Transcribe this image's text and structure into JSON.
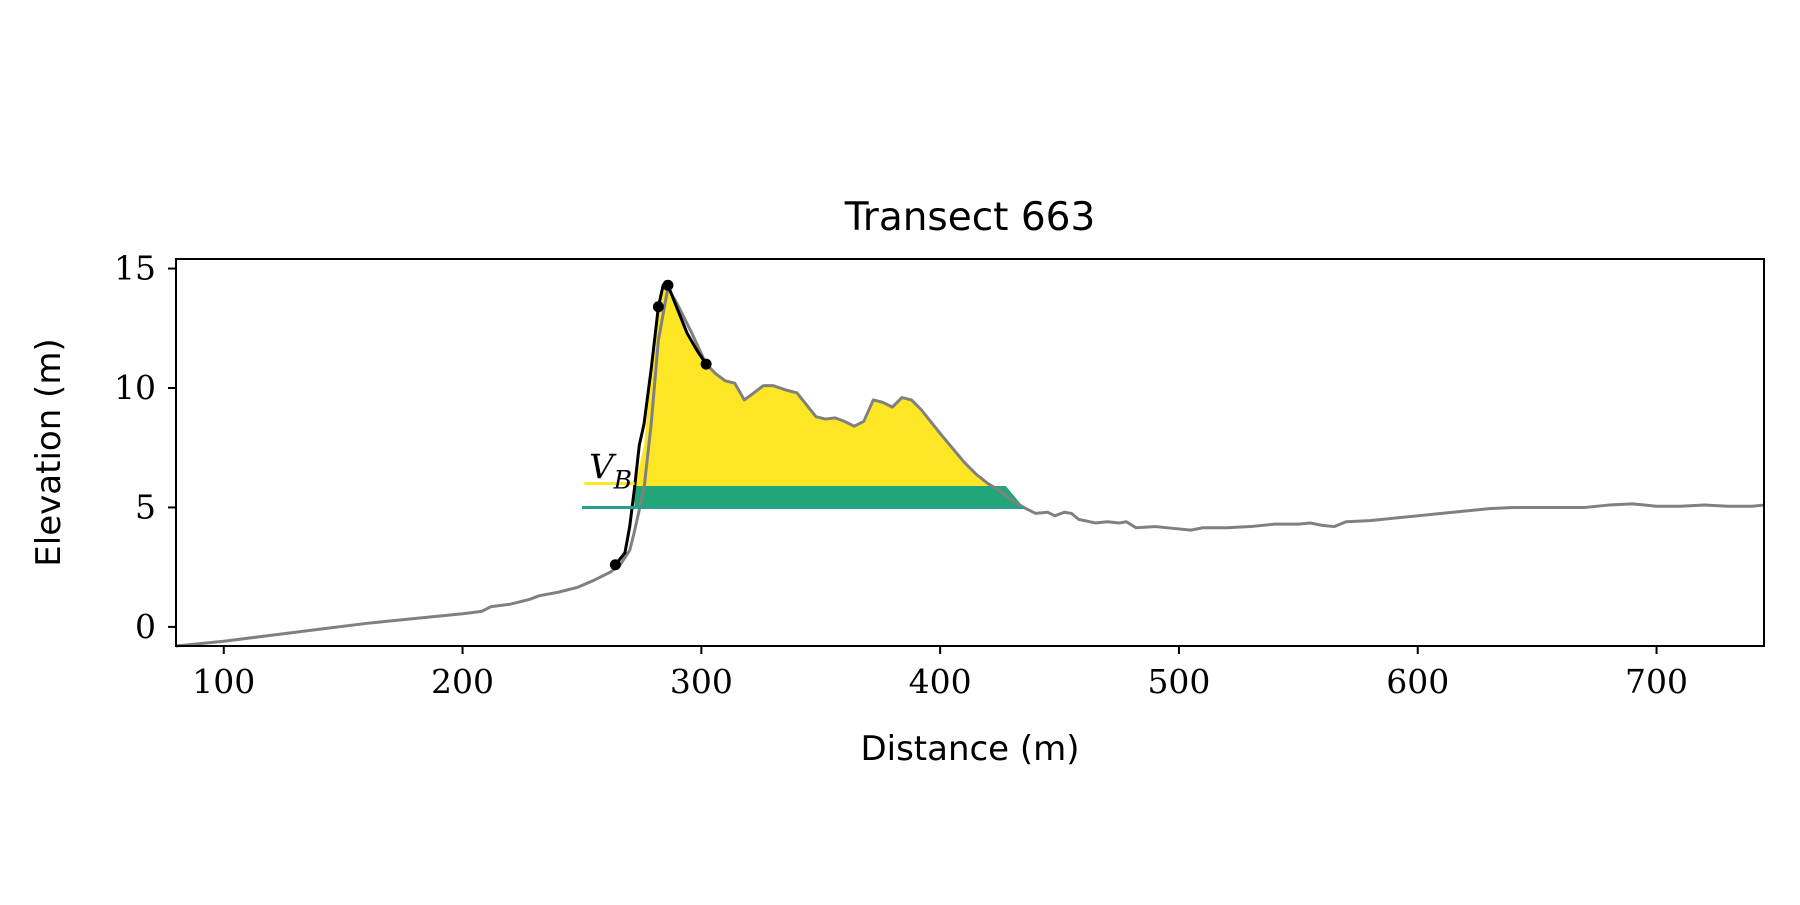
{
  "chart_data": {
    "type": "line",
    "title": "Transect 663",
    "xlabel": "Distance (m)",
    "ylabel": "Elevation (m)",
    "xlim": [
      80,
      745
    ],
    "ylim": [
      -0.8,
      15.4
    ],
    "xticks": [
      100,
      200,
      300,
      400,
      500,
      600,
      700
    ],
    "xtick_labels": [
      "100",
      "200",
      "300",
      "400",
      "500",
      "600",
      "700"
    ],
    "yticks": [
      0,
      5,
      10,
      15
    ],
    "ytick_labels": [
      "0",
      "5",
      "10",
      "15"
    ],
    "grid": false,
    "legend": "none",
    "colors": {
      "profile": "#808080",
      "dune_line": "#000000",
      "volume_fill": "#fde725",
      "base_fill": "#21a67a",
      "base_line": "#2a9d8f",
      "vb_line": "#fde725"
    },
    "annotation": {
      "label": "V",
      "subscript": "B",
      "x": 253,
      "y": 6.3,
      "yellow_line": {
        "x": [
          251,
          272
        ],
        "y": 6.0
      },
      "teal_line": {
        "x": [
          250,
          435
        ],
        "y": 5.0
      }
    },
    "series": [
      {
        "role": "profile",
        "x": [
          80,
          90,
          100,
          120,
          140,
          160,
          180,
          200,
          208,
          212,
          220,
          228,
          232,
          240,
          248,
          255,
          262,
          266,
          270,
          272,
          276,
          279,
          282,
          286,
          290,
          296,
          302,
          306,
          310,
          314,
          318,
          322,
          326,
          330,
          336,
          340,
          344,
          348,
          352,
          356,
          360,
          364,
          368,
          372,
          376,
          380,
          384,
          388,
          392,
          396,
          400,
          405,
          410,
          415,
          420,
          425,
          430,
          435,
          440,
          445,
          448,
          452,
          455,
          458,
          465,
          470,
          475,
          478,
          482,
          490,
          500,
          505,
          510,
          520,
          530,
          540,
          550,
          555,
          560,
          565,
          570,
          580,
          590,
          600,
          610,
          620,
          630,
          640,
          650,
          660,
          670,
          680,
          690,
          700,
          710,
          720,
          730,
          740,
          745
        ],
        "y": [
          -0.8,
          -0.7,
          -0.6,
          -0.35,
          -0.1,
          0.15,
          0.35,
          0.55,
          0.65,
          0.85,
          0.95,
          1.15,
          1.3,
          1.45,
          1.65,
          1.95,
          2.3,
          2.6,
          3.2,
          4.0,
          5.8,
          8.5,
          12.0,
          14.2,
          13.5,
          12.3,
          11.0,
          10.6,
          10.3,
          10.2,
          9.5,
          9.8,
          10.1,
          10.1,
          9.9,
          9.8,
          9.3,
          8.8,
          8.7,
          8.75,
          8.6,
          8.4,
          8.6,
          9.5,
          9.4,
          9.2,
          9.6,
          9.5,
          9.1,
          8.6,
          8.1,
          7.5,
          6.9,
          6.4,
          6.0,
          5.7,
          5.3,
          5.0,
          4.75,
          4.8,
          4.65,
          4.8,
          4.75,
          4.5,
          4.35,
          4.4,
          4.35,
          4.4,
          4.15,
          4.2,
          4.1,
          4.05,
          4.15,
          4.15,
          4.2,
          4.3,
          4.3,
          4.35,
          4.25,
          4.2,
          4.4,
          4.45,
          4.55,
          4.65,
          4.75,
          4.85,
          4.95,
          5.0,
          5.0,
          5.0,
          5.0,
          5.1,
          5.15,
          5.05,
          5.05,
          5.1,
          5.05,
          5.05,
          5.1
        ]
      },
      {
        "role": "dune_line",
        "x": [
          264,
          268,
          270,
          272,
          274,
          276,
          279,
          282,
          284,
          286,
          290,
          294,
          298,
          302
        ],
        "y": [
          2.6,
          3.1,
          4.2,
          5.8,
          7.6,
          8.5,
          10.8,
          13.4,
          14.3,
          14.3,
          13.3,
          12.3,
          11.6,
          11.0
        ]
      }
    ],
    "markers": {
      "x": [
        264,
        282,
        286,
        302
      ],
      "y": [
        2.6,
        13.4,
        14.3,
        11.0
      ]
    },
    "volume_region": {
      "x": [
        272,
        276,
        279,
        282,
        284,
        286,
        290,
        294,
        298,
        302,
        306,
        310,
        314,
        318,
        322,
        326,
        330,
        336,
        340,
        344,
        348,
        352,
        356,
        360,
        364,
        368,
        372,
        376,
        380,
        384,
        388,
        392,
        396,
        400,
        405,
        410,
        415,
        420,
        425,
        430,
        435
      ],
      "y": [
        5.8,
        7.6,
        10.8,
        13.4,
        14.3,
        14.3,
        13.3,
        12.3,
        11.6,
        11.0,
        10.6,
        10.3,
        10.2,
        9.5,
        9.8,
        10.1,
        10.1,
        9.9,
        9.8,
        9.3,
        8.8,
        8.7,
        8.75,
        8.6,
        8.4,
        8.6,
        9.5,
        9.4,
        9.2,
        9.6,
        9.5,
        9.1,
        8.6,
        8.1,
        7.5,
        6.9,
        6.4,
        6.0,
        5.7,
        5.3,
        5.0
      ],
      "base_band": [
        5.0,
        5.9
      ]
    }
  }
}
